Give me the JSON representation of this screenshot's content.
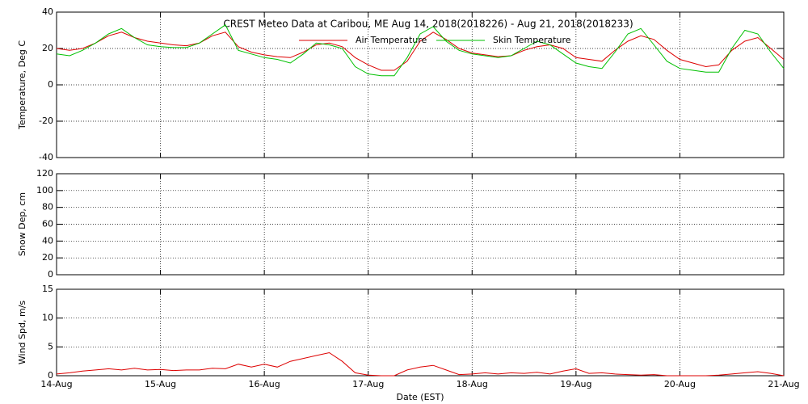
{
  "chart_data": [
    {
      "type": "line",
      "title": "CREST Meteo Data at Caribou, ME   Aug 14, 2018(2018226) - Aug 21, 2018(2018233)",
      "ylabel": "Temperature, Deg C",
      "x": [
        0,
        0.125,
        0.25,
        0.375,
        0.5,
        0.625,
        0.75,
        0.875,
        1,
        1.125,
        1.25,
        1.375,
        1.5,
        1.625,
        1.75,
        1.875,
        2,
        2.125,
        2.25,
        2.375,
        2.5,
        2.625,
        2.75,
        2.875,
        3,
        3.125,
        3.25,
        3.375,
        3.5,
        3.625,
        3.75,
        3.875,
        4,
        4.125,
        4.25,
        4.375,
        4.5,
        4.625,
        4.75,
        4.875,
        5,
        5.125,
        5.25,
        5.375,
        5.5,
        5.625,
        5.75,
        5.875,
        6,
        6.125,
        6.25,
        6.375,
        6.5,
        6.625,
        6.75,
        6.875,
        7
      ],
      "xlim": [
        0,
        7
      ],
      "xticks": [
        0,
        1,
        2,
        3,
        4,
        5,
        6,
        7
      ],
      "ylim": [
        -40,
        40
      ],
      "yticks": [
        -40,
        -20,
        0,
        20,
        40
      ],
      "grid": true,
      "legend": "top",
      "series": [
        {
          "name": "Air Temperature",
          "color": "#dd0000",
          "values": [
            20,
            19,
            20,
            23,
            27,
            29,
            26,
            24,
            23,
            22,
            21.5,
            23,
            27,
            29,
            21,
            18,
            16.5,
            15.5,
            15,
            18,
            22,
            23,
            21,
            15,
            11,
            8,
            8,
            13,
            24,
            29,
            25,
            20,
            17.5,
            16.5,
            15.5,
            16,
            19,
            21,
            22,
            20,
            15,
            14,
            13,
            19,
            24,
            27,
            25,
            19,
            14,
            12,
            10,
            11,
            19,
            24,
            26,
            20,
            14
          ]
        },
        {
          "name": "Skin Temperature",
          "color": "#00c000",
          "values": [
            17,
            16,
            19,
            23,
            28,
            31,
            26,
            22,
            21,
            20.5,
            20.5,
            23,
            28,
            33,
            19,
            17,
            15,
            14,
            12,
            17,
            23,
            22,
            20,
            10,
            6,
            5,
            5,
            15,
            28,
            32,
            24,
            19,
            17,
            16,
            15,
            16,
            20,
            24,
            22,
            17,
            12,
            10,
            9,
            18,
            28,
            31,
            22,
            13,
            9,
            8,
            7,
            7,
            20,
            30,
            28,
            18,
            9
          ]
        }
      ]
    },
    {
      "type": "line",
      "ylabel": "Snow Dep, cm",
      "xlim": [
        0,
        7
      ],
      "xticks": [
        0,
        1,
        2,
        3,
        4,
        5,
        6,
        7
      ],
      "ylim": [
        0,
        120
      ],
      "yticks": [
        0,
        20,
        40,
        60,
        80,
        100,
        120
      ],
      "grid": true
    },
    {
      "type": "line",
      "ylabel": "Wind Spd, m/s",
      "xlabel": "Date (EST)",
      "x": [
        0,
        0.125,
        0.25,
        0.375,
        0.5,
        0.625,
        0.75,
        0.875,
        1,
        1.125,
        1.25,
        1.375,
        1.5,
        1.625,
        1.75,
        1.875,
        2,
        2.125,
        2.25,
        2.375,
        2.5,
        2.625,
        2.75,
        2.875,
        3,
        3.125,
        3.25,
        3.375,
        3.5,
        3.625,
        3.75,
        3.875,
        4,
        4.125,
        4.25,
        4.375,
        4.5,
        4.625,
        4.75,
        4.875,
        5,
        5.125,
        5.25,
        5.375,
        5.5,
        5.625,
        5.75,
        5.875,
        6,
        6.125,
        6.25,
        6.375,
        6.5,
        6.625,
        6.75,
        6.875,
        7
      ],
      "xlim": [
        0,
        7
      ],
      "xticks": [
        {
          "value": 0,
          "label": "14-Aug"
        },
        {
          "value": 1,
          "label": "15-Aug"
        },
        {
          "value": 2,
          "label": "16-Aug"
        },
        {
          "value": 3,
          "label": "17-Aug"
        },
        {
          "value": 4,
          "label": "18-Aug"
        },
        {
          "value": 5,
          "label": "19-Aug"
        },
        {
          "value": 6,
          "label": "20-Aug"
        },
        {
          "value": 7,
          "label": "21-Aug"
        }
      ],
      "ylim": [
        0,
        15
      ],
      "yticks": [
        0,
        5,
        10,
        15
      ],
      "grid": true,
      "series": [
        {
          "color": "#dd0000",
          "values": [
            0.3,
            0.5,
            0.8,
            1,
            1.2,
            1,
            1.3,
            1,
            1.1,
            0.9,
            1,
            1,
            1.3,
            1.2,
            2,
            1.5,
            2,
            1.5,
            2.5,
            3,
            3.5,
            4,
            2.5,
            0.5,
            0.1,
            0,
            0,
            1,
            1.5,
            1.8,
            1,
            0.2,
            0.3,
            0.5,
            0.3,
            0.5,
            0.4,
            0.6,
            0.3,
            0.8,
            1.2,
            0.4,
            0.5,
            0.3,
            0.2,
            0.1,
            0.2,
            0,
            0,
            0,
            0,
            0.1,
            0.3,
            0.5,
            0.7,
            0.4,
            0
          ]
        }
      ]
    }
  ]
}
